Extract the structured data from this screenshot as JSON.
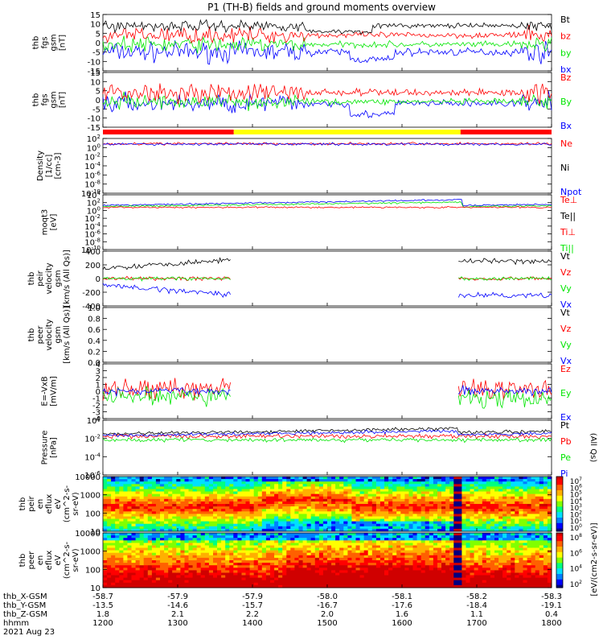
{
  "title": "P1 (TH-B) fields and ground moments overview",
  "colors": {
    "black": "#000000",
    "red": "#ff0000",
    "green": "#00e600",
    "blue": "#0000ff",
    "yellow": "#ffff00"
  },
  "chart_data": {
    "type": "line",
    "x_time_ticks": [
      "1200",
      "1300",
      "1400",
      "1500",
      "1600",
      "1700",
      "1800"
    ],
    "x_range": [
      "1200",
      "1800"
    ],
    "footer": {
      "rows": [
        {
          "label": "thb_X-GSM",
          "values": [
            "-58.7",
            "-57.9",
            "-57.9",
            "-58.0",
            "-58.1",
            "-58.2",
            "-58.3"
          ]
        },
        {
          "label": "thb_Y-GSM",
          "values": [
            "-13.5",
            "-14.6",
            "-15.7",
            "-16.7",
            "-17.6",
            "-18.4",
            "-19.1"
          ]
        },
        {
          "label": "thb_Z-GSM",
          "values": [
            "1.8",
            "2.1",
            "2.2",
            "2.0",
            "1.6",
            "1.1",
            "0.4"
          ]
        },
        {
          "label": "hhmm",
          "values": [
            "1200",
            "1300",
            "1400",
            "1500",
            "1600",
            "1700",
            "1800"
          ]
        }
      ],
      "date": "2021 Aug 23"
    },
    "mode_bar": {
      "segments": [
        {
          "from": "1200",
          "to": "1345",
          "color": "red"
        },
        {
          "from": "1345",
          "to": "1647",
          "color": "yellow"
        },
        {
          "from": "1647",
          "to": "1800",
          "color": "red"
        }
      ]
    },
    "panels": [
      {
        "id": "fgs_gsm",
        "ylabel": [
          "thb",
          "fgs",
          "gsm",
          "[nT]"
        ],
        "ylim": [
          -15,
          15
        ],
        "yticks": [
          "15",
          "10",
          "5",
          "0",
          "-5",
          "-10",
          "-15"
        ],
        "series": [
          {
            "name": "Bt",
            "color": "black"
          },
          {
            "name": "bz",
            "color": "red"
          },
          {
            "name": "by",
            "color": "green"
          },
          {
            "name": "bx",
            "color": "blue"
          }
        ]
      },
      {
        "id": "fgs_gse",
        "ylabel": [
          "thb",
          "fgs",
          "gsm",
          "[nT]"
        ],
        "ylim": [
          -15,
          15
        ],
        "yticks": [
          "15",
          "10",
          "5",
          "0",
          "-5",
          "-10",
          "-15"
        ],
        "series": [
          {
            "name": "Bz",
            "color": "red"
          },
          {
            "name": "By",
            "color": "green"
          },
          {
            "name": "Bx",
            "color": "blue"
          }
        ]
      },
      {
        "id": "density",
        "ylabel": [
          "Density",
          "[1/cc]",
          "[cm-3]"
        ],
        "scale": "log",
        "yticks": [
          "10^2",
          "10^0",
          "10^-2",
          "10^-4",
          "10^-6",
          "10^-8",
          "10^-10"
        ],
        "series": [
          {
            "name": "Ne",
            "color": "red"
          },
          {
            "name": "Ni",
            "color": "black"
          },
          {
            "name": "Npot",
            "color": "blue"
          }
        ]
      },
      {
        "id": "temp",
        "ylabel": [
          "moqt3",
          "[eV]"
        ],
        "scale": "log",
        "yticks": [
          "10^4",
          "10^2",
          "10^0",
          "10^-2",
          "10^-4",
          "10^-6",
          "10^-8",
          "10^-10"
        ],
        "series": [
          {
            "name": "Te⊥",
            "color": "red"
          },
          {
            "name": "Te||",
            "color": "black"
          },
          {
            "name": "Ti⊥",
            "color": "red"
          },
          {
            "name": "Ti||",
            "color": "green"
          }
        ]
      },
      {
        "id": "peir_vel",
        "ylabel": [
          "thb",
          "peir",
          "velocity",
          "gsm",
          "[km/s (All Qs)]"
        ],
        "ylim": [
          -400,
          400
        ],
        "yticks": [
          "400",
          "200",
          "0",
          "-200",
          "-400"
        ],
        "series": [
          {
            "name": "Vt",
            "color": "black"
          },
          {
            "name": "Vz",
            "color": "red"
          },
          {
            "name": "Vy",
            "color": "green"
          },
          {
            "name": "Vx",
            "color": "blue"
          }
        ]
      },
      {
        "id": "peer_vel",
        "ylabel": [
          "thb",
          "peer",
          "velocity",
          "gsm",
          "[km/s (All Qs)]"
        ],
        "ylim": [
          0,
          1
        ],
        "yticks": [
          "1.0",
          "0.8",
          "0.6",
          "0.4",
          "0.2",
          "0.0"
        ],
        "series": [
          {
            "name": "Vt",
            "color": "black"
          },
          {
            "name": "Vz",
            "color": "red"
          },
          {
            "name": "Vy",
            "color": "green"
          },
          {
            "name": "Vx",
            "color": "blue"
          }
        ]
      },
      {
        "id": "efield",
        "ylabel": [
          "E=-VxB",
          "[mV/m]"
        ],
        "ylim": [
          -4,
          4
        ],
        "yticks": [
          "4",
          "3",
          "2",
          "1",
          "0",
          "-1",
          "-2",
          "-3",
          "-4"
        ],
        "series": [
          {
            "name": "Ez",
            "color": "red"
          },
          {
            "name": "Ey",
            "color": "green"
          },
          {
            "name": "Ex",
            "color": "blue"
          }
        ]
      },
      {
        "id": "pressure",
        "ylabel": [
          "Pressure",
          "[nPa]"
        ],
        "scale": "log",
        "yticks": [
          "10^0",
          "10^-2",
          "10^-4",
          "10^-6"
        ],
        "series": [
          {
            "name": "Pt",
            "color": "black"
          },
          {
            "name": "Pb",
            "color": "red"
          },
          {
            "name": "Pe",
            "color": "green"
          },
          {
            "name": "Pi",
            "color": "blue"
          }
        ],
        "side_label": "(All Qs)"
      },
      {
        "id": "peir_spec",
        "type": "heatmap",
        "ylabel": [
          "thb",
          "peir",
          "en",
          "eflux",
          "eV",
          "(cm^2-s-",
          "sr-eV)"
        ],
        "scale": "log",
        "yticks": [
          "10000",
          "1000",
          "100",
          "10"
        ],
        "colorbar": {
          "ticks": [
            "10^7",
            "10^6",
            "10^5",
            "10^4",
            "10^3",
            "10^2",
            "10^1",
            "10^0"
          ]
        }
      },
      {
        "id": "peer_spec",
        "type": "heatmap",
        "ylabel": [
          "thb",
          "peer",
          "en",
          "eflux",
          "eV",
          "(cm^2-s-",
          "sr-eV)"
        ],
        "scale": "log",
        "yticks": [
          "10000",
          "1000",
          "100",
          "10"
        ],
        "colorbar": {
          "ticks": [
            "10^8",
            "10^6",
            "10^4",
            "10^2"
          ]
        }
      }
    ],
    "colorbar_label": "[eV/(cm2-s-sr-eV)]"
  }
}
